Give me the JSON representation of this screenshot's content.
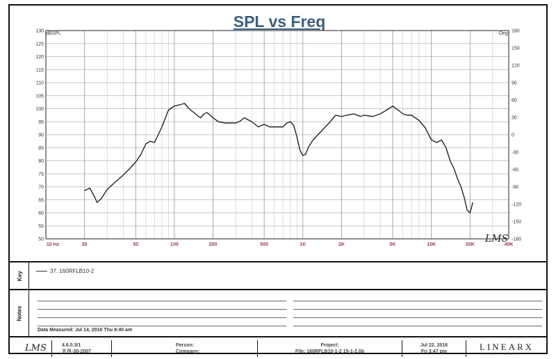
{
  "chart_data": {
    "type": "line",
    "title": "SPL vs Freq",
    "y_left_unit": "dBSPL",
    "y_right_unit": "Deg",
    "x_scale": "log",
    "xlim": [
      10,
      40000
    ],
    "ylim": [
      50,
      130
    ],
    "y_right_lim": [
      -180,
      180
    ],
    "y_left_ticks": [
      "50",
      "55",
      "60",
      "65",
      "70",
      "75",
      "80",
      "85",
      "90",
      "95",
      "100",
      "105",
      "110",
      "115",
      "120",
      "125",
      "130"
    ],
    "y_right_ticks": [
      "-180",
      "-150",
      "-120",
      "-90",
      "-60",
      "-30",
      "0",
      "30",
      "60",
      "90",
      "120",
      "150",
      "180"
    ],
    "x_ticks": [
      {
        "v": 10,
        "label": "10 Hz"
      },
      {
        "v": 20,
        "label": "20"
      },
      {
        "v": 50,
        "label": "50"
      },
      {
        "v": 100,
        "label": "100"
      },
      {
        "v": 200,
        "label": "200"
      },
      {
        "v": 500,
        "label": "500"
      },
      {
        "v": 1000,
        "label": "1K"
      },
      {
        "v": 2000,
        "label": "2K"
      },
      {
        "v": 5000,
        "label": "5K"
      },
      {
        "v": 10000,
        "label": "10K"
      },
      {
        "v": 20000,
        "label": "20K"
      },
      {
        "v": 40000,
        "label": "40K"
      }
    ],
    "grid": true,
    "watermark": "LMS",
    "series": [
      {
        "name": "37. 160RFLB10-2",
        "x": [
          20,
          22,
          24,
          25,
          27,
          30,
          35,
          40,
          45,
          50,
          55,
          60,
          65,
          70,
          80,
          90,
          100,
          110,
          120,
          130,
          150,
          160,
          170,
          180,
          200,
          220,
          250,
          280,
          300,
          320,
          350,
          400,
          450,
          500,
          550,
          600,
          650,
          700,
          750,
          800,
          850,
          900,
          950,
          1000,
          1050,
          1100,
          1200,
          1400,
          1600,
          1800,
          2000,
          2200,
          2500,
          2800,
          3000,
          3500,
          4000,
          4500,
          5000,
          5500,
          6000,
          6500,
          7000,
          8000,
          9000,
          10000,
          11000,
          12000,
          13000,
          14000,
          15000,
          16000,
          17000,
          18000,
          19000,
          20000,
          21000
        ],
        "values": [
          68.5,
          69.5,
          66,
          64,
          65.5,
          69,
          72,
          74.5,
          77,
          79.5,
          82.5,
          86.5,
          87.5,
          87,
          93,
          99.5,
          101,
          101.5,
          102,
          100,
          97.5,
          96.5,
          98,
          98.5,
          96.5,
          95,
          94.5,
          94.5,
          94.5,
          95,
          96.5,
          95,
          93,
          94,
          93,
          93,
          93,
          93,
          94.5,
          95,
          93.5,
          89,
          84,
          82,
          82.5,
          85,
          88,
          91.5,
          94.5,
          97.5,
          97,
          97.5,
          98,
          97,
          97.5,
          97,
          98,
          99.5,
          101,
          99.5,
          98,
          97.5,
          97.5,
          95.5,
          92.5,
          88,
          87,
          88,
          85,
          80,
          77,
          73,
          70,
          66,
          61,
          60,
          64
        ]
      }
    ]
  },
  "legend_section": {
    "label": "Key",
    "entries": [
      {
        "text": "37. 160RFLB10-2"
      }
    ]
  },
  "notes_section": {
    "label": "Notes",
    "measured": "Data Measured: Jul 14, 2016  Thu  9:40 am"
  },
  "footer": {
    "logo": "LMS",
    "version_line1": "4.6.0.3/1",
    "version_line2": "五月-30-2007",
    "person_label": "Person:",
    "company_label": "Company:",
    "project_label": "Project:",
    "file_line": "File: 160RFLB10-1-2 15-1-2.lib",
    "date_line1": "Jul 22, 2016",
    "date_line2": "Fri  3:47 pm",
    "brand": "LINEARX",
    "brand_sub": "SYSTEMS"
  }
}
